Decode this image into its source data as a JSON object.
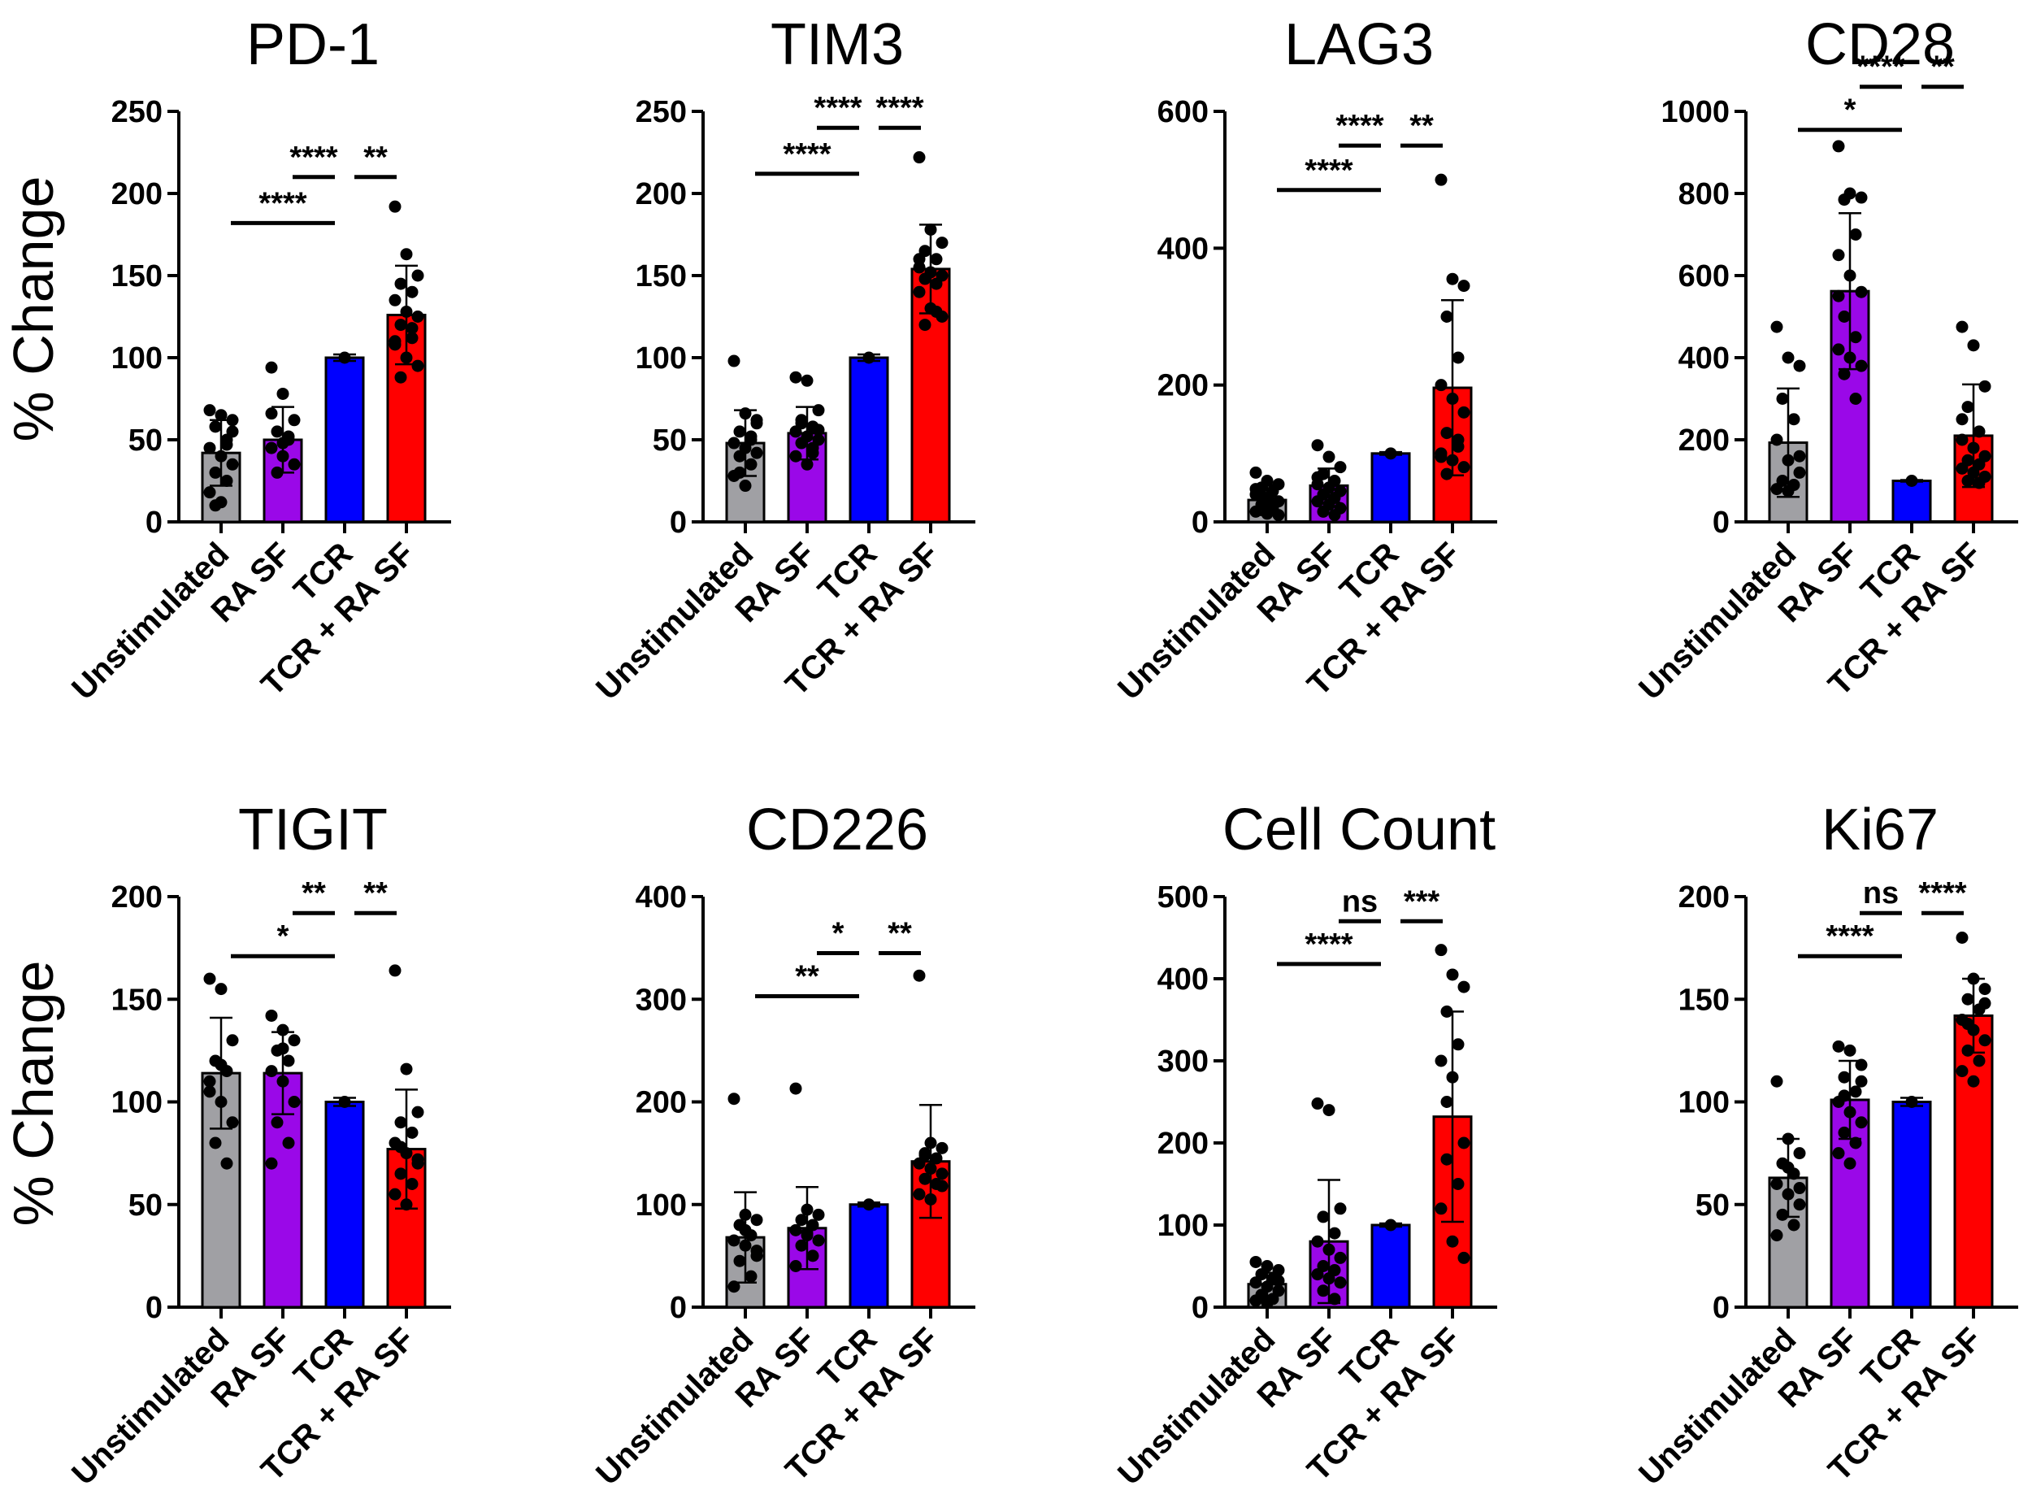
{
  "figure": {
    "ylabel": "% Change"
  },
  "colors": {
    "Unstimulated": "#a0a0a4",
    "RA SF": "#9a08e8",
    "TCR": "#0000ff",
    "TCR + RA SF": "#ff0000",
    "point": "#000000"
  },
  "chart_data": [
    {
      "type": "bar",
      "title": "PD-1",
      "ylabel": "% Change",
      "categories": [
        "Unstimulated",
        "RA SF",
        "TCR",
        "TCR + RA SF"
      ],
      "values": [
        42,
        50,
        100,
        126
      ],
      "error": [
        20,
        20,
        2,
        30
      ],
      "ylim": [
        0,
        250
      ],
      "yticks": [
        0,
        50,
        100,
        150,
        200,
        250
      ],
      "points": [
        [
          68,
          65,
          62,
          58,
          50,
          45,
          40,
          35,
          30,
          25,
          18,
          12,
          55,
          10,
          47
        ],
        [
          94,
          78,
          62,
          55,
          50,
          45,
          40,
          35,
          30,
          52,
          66,
          48
        ],
        [
          100
        ],
        [
          192,
          163,
          150,
          145,
          140,
          135,
          128,
          125,
          120,
          118,
          110,
          100,
          95,
          88,
          112,
          108
        ]
      ],
      "comparisons": [
        {
          "a": 0,
          "b": 2,
          "label": "****",
          "y": 182
        },
        {
          "a": 1,
          "b": 2,
          "label": "****",
          "y": 210
        },
        {
          "a": 2,
          "b": 3,
          "label": "**",
          "y": 210
        }
      ]
    },
    {
      "type": "bar",
      "title": "TIM3",
      "ylabel": "",
      "categories": [
        "Unstimulated",
        "RA SF",
        "TCR",
        "TCR + RA SF"
      ],
      "values": [
        48,
        54,
        100,
        154
      ],
      "error": [
        20,
        16,
        2,
        27
      ],
      "ylim": [
        0,
        250
      ],
      "yticks": [
        0,
        50,
        100,
        150,
        200,
        250
      ],
      "points": [
        [
          98,
          66,
          60,
          55,
          50,
          48,
          45,
          42,
          40,
          35,
          28,
          22,
          62,
          30,
          52
        ],
        [
          88,
          86,
          68,
          62,
          58,
          55,
          52,
          50,
          48,
          45,
          40,
          35,
          56,
          60,
          42
        ],
        [
          100
        ],
        [
          222,
          178,
          170,
          165,
          160,
          155,
          152,
          150,
          148,
          145,
          140,
          130,
          125,
          120,
          128,
          160
        ]
      ],
      "comparisons": [
        {
          "a": 0,
          "b": 2,
          "label": "****",
          "y": 212
        },
        {
          "a": 1,
          "b": 2,
          "label": "****",
          "y": 240
        },
        {
          "a": 2,
          "b": 3,
          "label": "****",
          "y": 240
        }
      ]
    },
    {
      "type": "bar",
      "title": "LAG3",
      "ylabel": "",
      "categories": [
        "Unstimulated",
        "RA SF",
        "TCR",
        "TCR + RA SF"
      ],
      "values": [
        32,
        53,
        100,
        196
      ],
      "error": [
        22,
        25,
        2,
        128
      ],
      "ylim": [
        0,
        600
      ],
      "yticks": [
        0,
        200,
        400,
        600
      ],
      "points": [
        [
          72,
          60,
          55,
          50,
          45,
          40,
          35,
          30,
          25,
          20,
          15,
          12,
          10,
          38,
          28,
          48
        ],
        [
          112,
          95,
          80,
          70,
          60,
          55,
          50,
          45,
          40,
          35,
          30,
          25,
          20,
          15,
          10,
          65
        ],
        [
          100
        ],
        [
          500,
          355,
          345,
          300,
          240,
          200,
          180,
          160,
          130,
          110,
          100,
          90,
          80,
          70,
          120,
          95
        ]
      ],
      "comparisons": [
        {
          "a": 0,
          "b": 2,
          "label": "****",
          "y": 485
        },
        {
          "a": 1,
          "b": 2,
          "label": "****",
          "y": 550
        },
        {
          "a": 2,
          "b": 3,
          "label": "**",
          "y": 550
        }
      ]
    },
    {
      "type": "bar",
      "title": "CD28",
      "ylabel": "",
      "categories": [
        "Unstimulated",
        "RA SF",
        "TCR",
        "TCR + RA SF"
      ],
      "values": [
        193,
        562,
        100,
        210
      ],
      "error": [
        132,
        190,
        2,
        125
      ],
      "ylim": [
        0,
        1000
      ],
      "yticks": [
        0,
        200,
        400,
        600,
        800,
        1000
      ],
      "points": [
        [
          475,
          400,
          380,
          300,
          250,
          200,
          150,
          120,
          100,
          90,
          80,
          75,
          160
        ],
        [
          915,
          800,
          790,
          785,
          700,
          650,
          600,
          560,
          500,
          450,
          420,
          400,
          380,
          360,
          300,
          550
        ],
        [
          100
        ],
        [
          475,
          430,
          330,
          280,
          220,
          200,
          180,
          160,
          150,
          140,
          130,
          120,
          110,
          100,
          95,
          250
        ]
      ],
      "comparisons": [
        {
          "a": 0,
          "b": 2,
          "label": "*",
          "y": 955
        },
        {
          "a": 1,
          "b": 2,
          "label": "****",
          "y": 1060
        },
        {
          "a": 2,
          "b": 3,
          "label": "**",
          "y": 1060
        }
      ]
    },
    {
      "type": "bar",
      "title": "TIGIT",
      "ylabel": "% Change",
      "categories": [
        "Unstimulated",
        "RA SF",
        "TCR",
        "TCR + RA SF"
      ],
      "values": [
        114,
        114,
        100,
        77
      ],
      "error": [
        27,
        20,
        2,
        29
      ],
      "ylim": [
        0,
        200
      ],
      "yticks": [
        0,
        50,
        100,
        150,
        200
      ],
      "points": [
        [
          160,
          155,
          130,
          120,
          115,
          110,
          100,
          90,
          80,
          70,
          105,
          118
        ],
        [
          142,
          135,
          130,
          125,
          120,
          115,
          110,
          100,
          90,
          80,
          70,
          126
        ],
        [
          100
        ],
        [
          164,
          116,
          95,
          90,
          85,
          80,
          75,
          70,
          65,
          60,
          55,
          50,
          72,
          78
        ]
      ],
      "comparisons": [
        {
          "a": 0,
          "b": 2,
          "label": "*",
          "y": 171
        },
        {
          "a": 1,
          "b": 2,
          "label": "**",
          "y": 192
        },
        {
          "a": 2,
          "b": 3,
          "label": "**",
          "y": 192
        }
      ]
    },
    {
      "type": "bar",
      "title": "CD226",
      "ylabel": "",
      "categories": [
        "Unstimulated",
        "RA SF",
        "TCR",
        "TCR + RA SF"
      ],
      "values": [
        68,
        77,
        100,
        142
      ],
      "error": [
        44,
        40,
        2,
        55
      ],
      "ylim": [
        0,
        400
      ],
      "yticks": [
        0,
        100,
        200,
        300,
        400
      ],
      "points": [
        [
          203,
          90,
          85,
          80,
          70,
          65,
          60,
          55,
          45,
          30,
          20,
          75,
          50
        ],
        [
          213,
          95,
          90,
          85,
          80,
          75,
          70,
          65,
          60,
          50,
          40,
          72
        ],
        [
          100
        ],
        [
          323,
          160,
          155,
          150,
          145,
          140,
          135,
          130,
          125,
          120,
          110,
          105,
          118,
          148
        ]
      ],
      "comparisons": [
        {
          "a": 0,
          "b": 2,
          "label": "**",
          "y": 303
        },
        {
          "a": 1,
          "b": 2,
          "label": "*",
          "y": 345
        },
        {
          "a": 2,
          "b": 3,
          "label": "**",
          "y": 345
        }
      ]
    },
    {
      "type": "bar",
      "title": "Cell Count",
      "ylabel": "",
      "categories": [
        "Unstimulated",
        "RA SF",
        "TCR",
        "TCR + RA SF"
      ],
      "values": [
        28,
        80,
        100,
        232
      ],
      "error": [
        14,
        75,
        2,
        128
      ],
      "ylim": [
        0,
        500
      ],
      "yticks": [
        0,
        100,
        200,
        300,
        400,
        500
      ],
      "points": [
        [
          55,
          50,
          45,
          40,
          35,
          30,
          25,
          20,
          15,
          10,
          8,
          5,
          32
        ],
        [
          248,
          240,
          120,
          110,
          90,
          80,
          70,
          60,
          50,
          45,
          40,
          35,
          30,
          20,
          10
        ],
        [
          100
        ],
        [
          435,
          405,
          390,
          360,
          320,
          300,
          280,
          200,
          180,
          150,
          120,
          80,
          60,
          250
        ]
      ],
      "comparisons": [
        {
          "a": 0,
          "b": 2,
          "label": "****",
          "y": 418
        },
        {
          "a": 1,
          "b": 2,
          "label": "ns",
          "y": 470
        },
        {
          "a": 2,
          "b": 3,
          "label": "***",
          "y": 470
        }
      ]
    },
    {
      "type": "bar",
      "title": "Ki67",
      "ylabel": "",
      "categories": [
        "Unstimulated",
        "RA SF",
        "TCR",
        "TCR + RA SF"
      ],
      "values": [
        63,
        101,
        100,
        142
      ],
      "error": [
        19,
        19,
        2,
        18
      ],
      "ylim": [
        0,
        200
      ],
      "yticks": [
        0,
        50,
        100,
        150,
        200
      ],
      "points": [
        [
          110,
          82,
          75,
          70,
          65,
          60,
          55,
          50,
          45,
          40,
          35,
          68,
          58
        ],
        [
          127,
          125,
          118,
          112,
          105,
          100,
          95,
          90,
          85,
          80,
          75,
          70,
          110,
          103
        ],
        [
          100
        ],
        [
          180,
          160,
          155,
          150,
          145,
          140,
          135,
          130,
          125,
          120,
          115,
          110,
          148,
          138
        ]
      ],
      "comparisons": [
        {
          "a": 0,
          "b": 2,
          "label": "****",
          "y": 171
        },
        {
          "a": 1,
          "b": 2,
          "label": "ns",
          "y": 192
        },
        {
          "a": 2,
          "b": 3,
          "label": "****",
          "y": 192
        }
      ]
    }
  ]
}
